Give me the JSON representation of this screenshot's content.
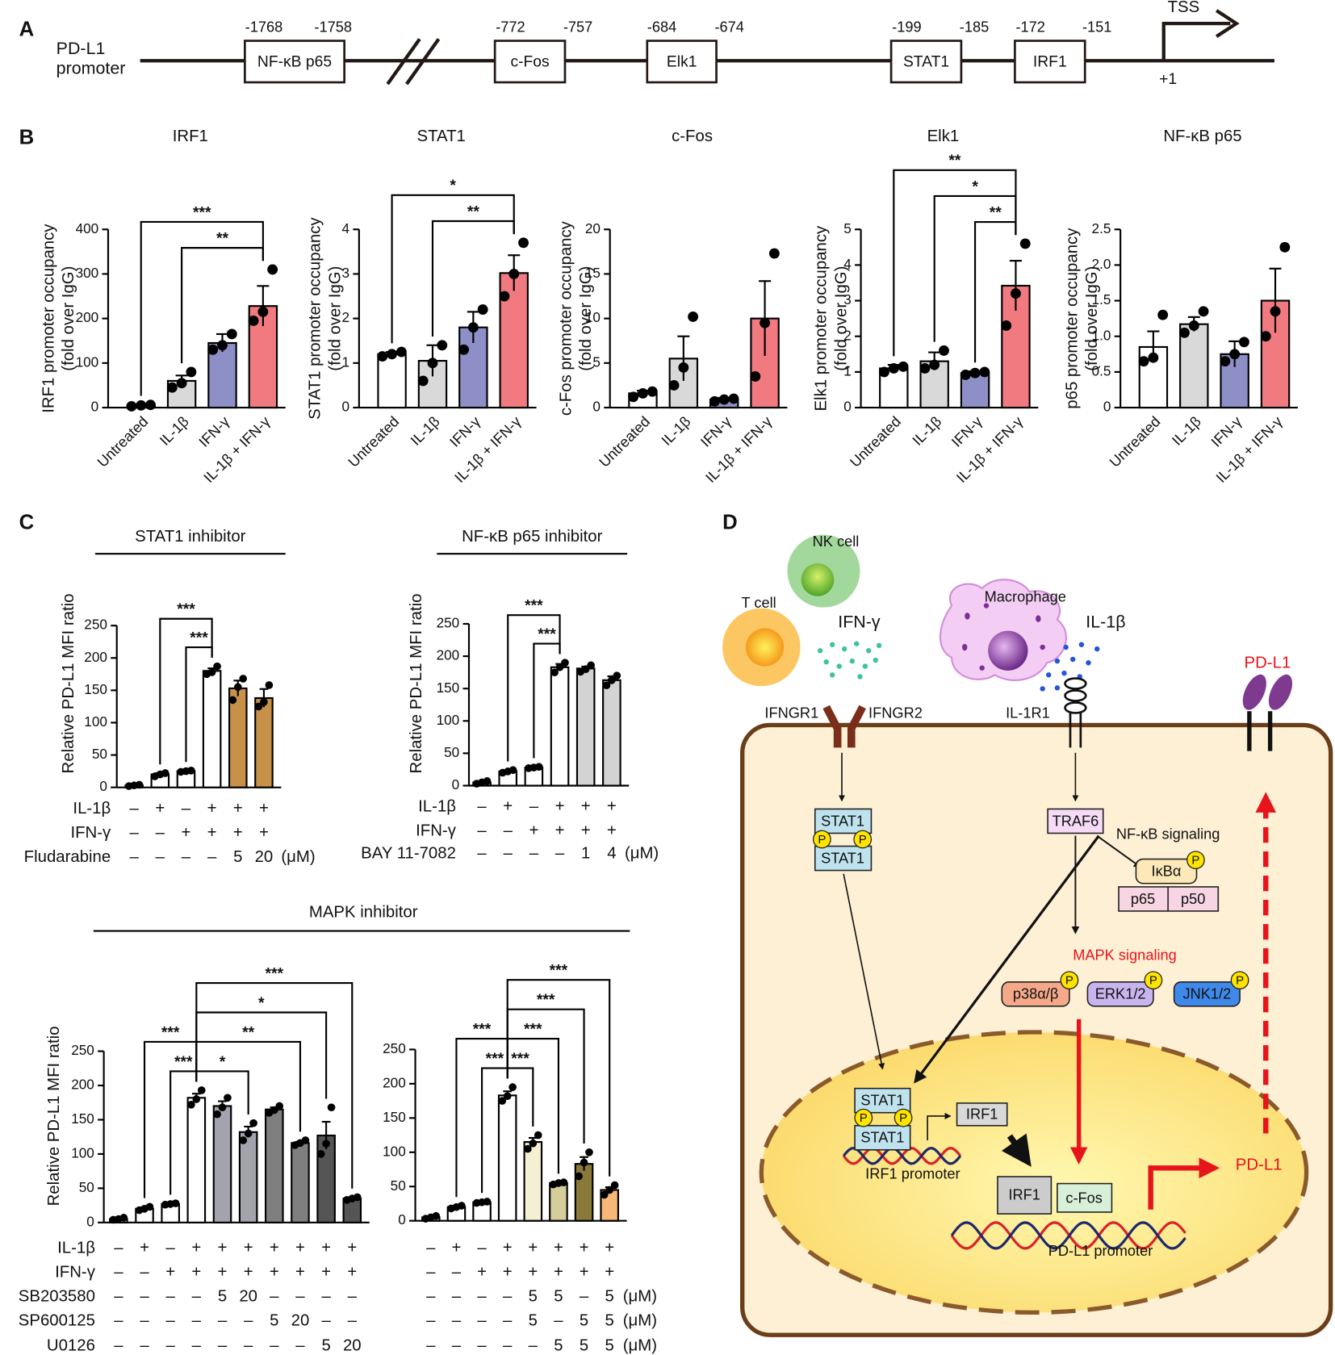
{
  "panel_labels": {
    "a": "A",
    "b": "B",
    "c": "C",
    "d": "D"
  },
  "promoter": {
    "title": [
      "PD-L1",
      "promoter"
    ],
    "elements": [
      {
        "name": "NF-κB p65",
        "start": -1768,
        "end": -1758
      },
      {
        "name": "c-Fos",
        "start": -772,
        "end": -757
      },
      {
        "name": "Elk1",
        "start": -684,
        "end": -674
      },
      {
        "name": "STAT1",
        "start": -199,
        "end": -185
      },
      {
        "name": "IRF1",
        "start": -172,
        "end": -151
      }
    ],
    "tss": "TSS",
    "plus_one": "+1"
  },
  "chart_data": [
    {
      "type": "bar",
      "title": "IRF1",
      "ylabel": [
        "IRF1 promoter occupancy",
        "(fold over IgG)"
      ],
      "categories": [
        "Untreated",
        "IL-1β",
        "IFN-γ",
        "IL-1β + IFN-γ"
      ],
      "colors": [
        "#ffffff",
        "#d9d9d9",
        "#8e8fc7",
        "#f07a80"
      ],
      "values": [
        5,
        60,
        145,
        228
      ],
      "errors": [
        2,
        12,
        20,
        45
      ],
      "points": [
        [
          3,
          5,
          6
        ],
        [
          45,
          55,
          80
        ],
        [
          130,
          140,
          165
        ],
        [
          195,
          215,
          310
        ]
      ],
      "ylim": [
        0,
        400
      ],
      "yticks": [
        0,
        100,
        200,
        300,
        400
      ],
      "annotations": [
        {
          "from": 1,
          "to": 3,
          "label": "**"
        },
        {
          "from": 0,
          "to": 3,
          "label": "***"
        }
      ]
    },
    {
      "type": "bar",
      "title": "STAT1",
      "ylabel": [
        "STAT1 promoter occupancy",
        "(fold over IgG)"
      ],
      "categories": [
        "Untreated",
        "IL-1β",
        "IFN-γ",
        "IL-1β + IFN-γ"
      ],
      "colors": [
        "#ffffff",
        "#d9d9d9",
        "#8e8fc7",
        "#f07a80"
      ],
      "values": [
        1.2,
        1.05,
        1.8,
        3.02
      ],
      "errors": [
        0.05,
        0.35,
        0.35,
        0.4
      ],
      "points": [
        [
          1.15,
          1.2,
          1.25
        ],
        [
          0.6,
          1.0,
          1.4
        ],
        [
          1.3,
          1.8,
          2.2
        ],
        [
          2.5,
          3.0,
          3.7
        ]
      ],
      "ylim": [
        0,
        4
      ],
      "yticks": [
        0,
        1,
        2,
        3,
        4
      ],
      "annotations": [
        {
          "from": 1,
          "to": 3,
          "label": "**"
        },
        {
          "from": 0,
          "to": 3,
          "label": "*"
        }
      ]
    },
    {
      "type": "bar",
      "title": "c-Fos",
      "ylabel": [
        "c-Fos promoter occupancy",
        "(fold over IgG)"
      ],
      "categories": [
        "Untreated",
        "IL-1β",
        "IFN-γ",
        "IL-1β + IFN-γ"
      ],
      "colors": [
        "#ffffff",
        "#d9d9d9",
        "#8e8fc7",
        "#f07a80"
      ],
      "values": [
        1.6,
        5.5,
        0.9,
        10
      ],
      "errors": [
        0.3,
        2.5,
        0.2,
        4.2
      ],
      "points": [
        [
          1.2,
          1.6,
          1.8
        ],
        [
          2.5,
          4.5,
          10.2
        ],
        [
          0.7,
          0.9,
          1.0
        ],
        [
          3.5,
          9.5,
          17.3
        ]
      ],
      "ylim": [
        0,
        20
      ],
      "yticks": [
        0,
        5,
        10,
        15,
        20
      ]
    },
    {
      "type": "bar",
      "title": "Elk1",
      "ylabel": [
        "Elk1 promoter occupancy",
        "(fold over IgG)"
      ],
      "categories": [
        "Untreated",
        "IL-1β",
        "IFN-γ",
        "IL-1β + IFN-γ"
      ],
      "colors": [
        "#ffffff",
        "#d9d9d9",
        "#8e8fc7",
        "#f07a80"
      ],
      "values": [
        1.1,
        1.3,
        0.97,
        3.42
      ],
      "errors": [
        0.1,
        0.25,
        0.05,
        0.7
      ],
      "points": [
        [
          1.0,
          1.1,
          1.15
        ],
        [
          1.1,
          1.2,
          1.6
        ],
        [
          0.92,
          0.97,
          1.0
        ],
        [
          2.3,
          3.2,
          4.6
        ]
      ],
      "ylim": [
        0,
        5
      ],
      "yticks": [
        0,
        1,
        2,
        3,
        4,
        5
      ],
      "annotations": [
        {
          "from": 2,
          "to": 3,
          "label": "**"
        },
        {
          "from": 1,
          "to": 3,
          "label": "*"
        },
        {
          "from": 0,
          "to": 3,
          "label": "**"
        }
      ]
    },
    {
      "type": "bar",
      "title": "NF-κB p65",
      "ylabel": [
        "p65 promoter occupancy",
        "(fold over IgG)"
      ],
      "categories": [
        "Untreated",
        "IL-1β",
        "IFN-γ",
        "IL-1β + IFN-γ"
      ],
      "colors": [
        "#ffffff",
        "#d9d9d9",
        "#8e8fc7",
        "#f07a80"
      ],
      "values": [
        0.85,
        1.17,
        0.75,
        1.5
      ],
      "errors": [
        0.22,
        0.1,
        0.18,
        0.45
      ],
      "points": [
        [
          0.65,
          0.7,
          1.3
        ],
        [
          1.05,
          1.15,
          1.35
        ],
        [
          0.65,
          0.75,
          0.92
        ],
        [
          1.0,
          1.35,
          2.25
        ]
      ],
      "ylim": [
        0,
        2.5
      ],
      "yticks": [
        0,
        0.5,
        {
          "value": 1,
          "label": "1.0"
        },
        1.5,
        {
          "value": 2,
          "label": "2.0"
        },
        2.5
      ]
    },
    {
      "type": "bar",
      "title": "STAT1 inhibitor",
      "ylabel": "Relative PD-L1 MFI ratio",
      "colors": [
        "#ffffff",
        "#ffffff",
        "#ffffff",
        "#ffffff",
        "#c8914a",
        "#c8914a"
      ],
      "values": [
        3,
        20,
        25,
        180,
        153,
        138
      ],
      "errors": [
        1,
        2,
        1,
        4,
        12,
        14
      ],
      "points": [
        [
          2,
          3,
          4
        ],
        [
          17,
          20,
          22
        ],
        [
          24,
          25,
          26
        ],
        [
          175,
          178,
          187
        ],
        [
          135,
          155,
          168
        ],
        [
          125,
          132,
          158
        ]
      ],
      "ylim": [
        0,
        250
      ],
      "yticks": [
        0,
        50,
        100,
        150,
        200,
        250
      ],
      "annotations": [
        {
          "from": 2,
          "to": 3,
          "label": "***"
        },
        {
          "from": 1,
          "to": 3,
          "label": "***"
        }
      ],
      "conditions": [
        {
          "name": "IL-1β",
          "values": [
            "–",
            "+",
            "–",
            "+",
            "+",
            "+"
          ]
        },
        {
          "name": "IFN-γ",
          "values": [
            "–",
            "–",
            "+",
            "+",
            "+",
            "+"
          ]
        },
        {
          "name": "Fludarabine",
          "values": [
            "–",
            "–",
            "–",
            "–",
            "5",
            "20"
          ],
          "unit": "(μM)"
        }
      ]
    },
    {
      "type": "bar",
      "title": "NF-κB p65 inhibitor",
      "ylabel": "Relative PD-L1 MFI ratio",
      "colors": [
        "#ffffff",
        "#ffffff",
        "#ffffff",
        "#ffffff",
        "#d3d3d3",
        "#d3d3d3"
      ],
      "values": [
        5,
        22,
        28,
        183,
        181,
        163
      ],
      "errors": [
        1,
        1,
        1,
        5,
        3,
        6
      ],
      "points": [
        [
          3,
          5,
          7
        ],
        [
          20,
          22,
          24
        ],
        [
          27,
          28,
          29
        ],
        [
          175,
          183,
          190
        ],
        [
          176,
          180,
          186
        ],
        [
          155,
          163,
          170
        ]
      ],
      "ylim": [
        0,
        250
      ],
      "yticks": [
        0,
        50,
        100,
        150,
        200,
        250
      ],
      "annotations": [
        {
          "from": 2,
          "to": 3,
          "label": "***"
        },
        {
          "from": 1,
          "to": 3,
          "label": "***"
        }
      ],
      "conditions": [
        {
          "name": "IL-1β",
          "values": [
            "–",
            "+",
            "–",
            "+",
            "+",
            "+"
          ]
        },
        {
          "name": "IFN-γ",
          "values": [
            "–",
            "–",
            "+",
            "+",
            "+",
            "+"
          ]
        },
        {
          "name": "BAY 11-7082",
          "values": [
            "–",
            "–",
            "–",
            "–",
            "1",
            "4"
          ],
          "unit": "(μM)"
        }
      ]
    },
    {
      "type": "bar",
      "title": "MAPK inhibitor",
      "ylabel": "Relative PD-L1 MFI ratio",
      "colors": [
        "#ffffff",
        "#ffffff",
        "#ffffff",
        "#ffffff",
        "#a3a3ae",
        "#a3a3ae",
        "#7f7f7f",
        "#7f7f7f",
        "#555555",
        "#555555"
      ],
      "values": [
        5,
        20,
        27,
        182,
        170,
        132,
        165,
        116,
        127,
        35
      ],
      "errors": [
        1,
        2,
        1,
        6,
        7,
        8,
        3,
        2,
        20,
        1
      ],
      "points": [
        [
          4,
          5,
          7
        ],
        [
          18,
          20,
          23
        ],
        [
          26,
          27,
          28
        ],
        [
          172,
          180,
          193
        ],
        [
          158,
          168,
          182
        ],
        [
          120,
          130,
          145
        ],
        [
          160,
          164,
          170
        ],
        [
          113,
          116,
          120
        ],
        [
          100,
          115,
          168
        ],
        [
          33,
          35,
          37
        ]
      ],
      "ylim": [
        0,
        250
      ],
      "yticks": [
        0,
        50,
        100,
        150,
        200,
        250
      ],
      "annotations": [
        {
          "from": 2,
          "to": 3,
          "label": "***"
        },
        {
          "from": 1,
          "to": 3,
          "label": "***"
        },
        {
          "from": 3,
          "to": 5,
          "label": "*"
        },
        {
          "from": 3,
          "to": 7,
          "label": "**"
        },
        {
          "from": 3,
          "to": 8,
          "label": "*"
        },
        {
          "from": 3,
          "to": 9,
          "label": "***"
        }
      ],
      "conditions": [
        {
          "name": "IL-1β",
          "values": [
            "–",
            "+",
            "–",
            "+",
            "+",
            "+",
            "+",
            "+",
            "+",
            "+"
          ]
        },
        {
          "name": "IFN-γ",
          "values": [
            "–",
            "–",
            "+",
            "+",
            "+",
            "+",
            "+",
            "+",
            "+",
            "+"
          ]
        },
        {
          "name": "SB203580",
          "values": [
            "–",
            "–",
            "–",
            "–",
            "5",
            "20",
            "–",
            "–",
            "–",
            "–"
          ]
        },
        {
          "name": "SP600125",
          "values": [
            "–",
            "–",
            "–",
            "–",
            "–",
            "–",
            "5",
            "20",
            "–",
            "–"
          ]
        },
        {
          "name": "U0126",
          "values": [
            "–",
            "–",
            "–",
            "–",
            "–",
            "–",
            "–",
            "–",
            "5",
            "20"
          ]
        }
      ]
    },
    {
      "type": "bar",
      "colors": [
        "#ffffff",
        "#ffffff",
        "#ffffff",
        "#ffffff",
        "#f5efd3",
        "#d6cd9c",
        "#8a7a3a",
        "#f6b778"
      ],
      "values": [
        5,
        20,
        27,
        183,
        115,
        55,
        83,
        45
      ],
      "errors": [
        1,
        1,
        1,
        6,
        6,
        1,
        10,
        4
      ],
      "points": [
        [
          3,
          5,
          7
        ],
        [
          18,
          20,
          22
        ],
        [
          26,
          27,
          28
        ],
        [
          175,
          182,
          195
        ],
        [
          105,
          113,
          125
        ],
        [
          53,
          55,
          56
        ],
        [
          65,
          85,
          100
        ],
        [
          38,
          45,
          52
        ]
      ],
      "ylim": [
        0,
        250
      ],
      "yticks": [
        0,
        50,
        100,
        150,
        200,
        250
      ],
      "annotations": [
        {
          "from": 2,
          "to": 3,
          "label": "***"
        },
        {
          "from": 1,
          "to": 3,
          "label": "***"
        },
        {
          "from": 3,
          "to": 4,
          "label": "***"
        },
        {
          "from": 3,
          "to": 5,
          "label": "***"
        },
        {
          "from": 3,
          "to": 6,
          "label": "***"
        },
        {
          "from": 3,
          "to": 7,
          "label": "***"
        }
      ],
      "conditions": [
        {
          "values": [
            "–",
            "+",
            "–",
            "+",
            "+",
            "+",
            "+",
            "+"
          ]
        },
        {
          "values": [
            "–",
            "–",
            "+",
            "+",
            "+",
            "+",
            "+",
            "+"
          ]
        },
        {
          "values": [
            "–",
            "–",
            "–",
            "–",
            "5",
            "5",
            "–",
            "5"
          ],
          "unit": "(μM)"
        },
        {
          "values": [
            "–",
            "–",
            "–",
            "–",
            "5",
            "–",
            "5",
            "5"
          ],
          "unit": "(μM)"
        },
        {
          "values": [
            "–",
            "–",
            "–",
            "–",
            "–",
            "5",
            "5",
            "5"
          ],
          "unit": "(μM)"
        }
      ]
    }
  ],
  "pathway": {
    "nk_cell": "NK cell",
    "t_cell": "T cell",
    "ifn_gamma": "IFN-γ",
    "macrophage": "Macrophage",
    "il1b": "IL-1β",
    "ifngr1": "IFNGR1",
    "ifngr2": "IFNGR2",
    "il1r1": "IL-1R1",
    "pdl1_membrane": "PD-L1",
    "stat1": "STAT1",
    "p": "P",
    "traf6": "TRAF6",
    "nfkb_signaling": "NF-κB signaling",
    "ikba": "IκBα",
    "p65": "p65",
    "p50": "p50",
    "mapk_signaling": "MAPK signaling",
    "p38": "p38α/β",
    "erk": "ERK1/2",
    "jnk": "JNK1/2",
    "irf1": "IRF1",
    "irf1_promoter": "IRF1 promoter",
    "cfos": "c-Fos",
    "pdl1_promoter": "PD-L1 promoter",
    "pdl1_output": "PD-L1"
  }
}
